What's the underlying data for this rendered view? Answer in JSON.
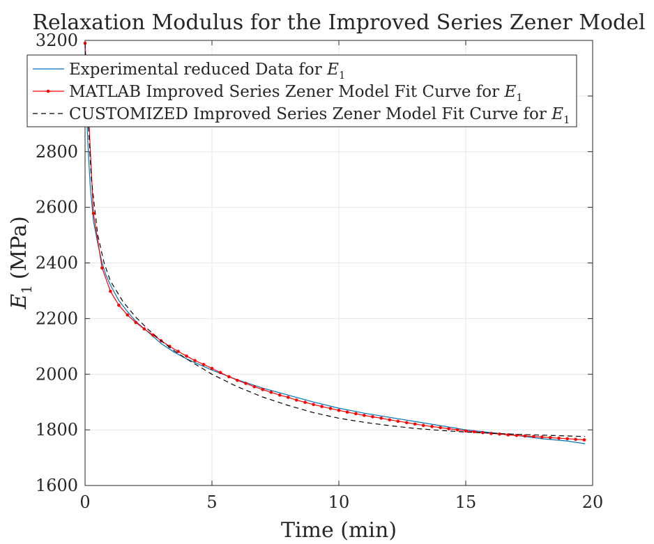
{
  "chart_data": {
    "type": "line",
    "title": "Relaxation Modulus for the Improved Series Zener Model",
    "xlabel": "Time (min)",
    "ylabel": "E1 (MPa)",
    "ylabel_main": "E",
    "ylabel_sub": "1",
    "ylabel_unit": "(MPa)",
    "xlim": [
      0,
      20
    ],
    "ylim": [
      1600,
      3200
    ],
    "xticks": [
      0,
      5,
      10,
      15,
      20
    ],
    "yticks": [
      1600,
      1800,
      2000,
      2200,
      2400,
      2600,
      2800,
      3200
    ],
    "grid": true,
    "legend_position": "top-left",
    "series": [
      {
        "name": "Experimental reduced Data for E1",
        "legend_prefix": "Experimental reduced Data for ",
        "color": "#0072BD",
        "style": "solid",
        "x": [
          0,
          0.05,
          0.1,
          0.2,
          0.33,
          0.5,
          0.67,
          0.83,
          1.0,
          1.33,
          1.67,
          2.0,
          2.5,
          3.0,
          3.5,
          4.0,
          5.0,
          6.0,
          7.0,
          8.0,
          9.0,
          10.0,
          11.0,
          12.0,
          13.0,
          14.0,
          15.0,
          16.0,
          17.0,
          18.0,
          19.0,
          19.7
        ],
        "y": [
          3190,
          3000,
          2850,
          2680,
          2550,
          2470,
          2400,
          2355,
          2320,
          2265,
          2225,
          2190,
          2150,
          2110,
          2080,
          2055,
          2015,
          1980,
          1950,
          1925,
          1900,
          1878,
          1860,
          1845,
          1830,
          1815,
          1800,
          1790,
          1780,
          1768,
          1760,
          1750
        ]
      },
      {
        "name": "MATLAB Improved Series Zener Model Fit Curve for E1",
        "legend_prefix": "MATLAB Improved Series Zener Model Fit Curve for ",
        "color": "#FF0000",
        "style": "solid-markers",
        "x": [
          0,
          0.33,
          0.67,
          1.0,
          1.33,
          1.67,
          2.0,
          2.33,
          2.67,
          3.0,
          3.33,
          3.67,
          4.0,
          4.33,
          4.67,
          5.0,
          5.33,
          5.67,
          6.0,
          6.33,
          6.67,
          7.0,
          7.33,
          7.67,
          8.0,
          8.33,
          8.67,
          9.0,
          9.33,
          9.67,
          10.0,
          10.33,
          10.67,
          11.0,
          11.33,
          11.67,
          12.0,
          12.33,
          12.67,
          13.0,
          13.33,
          13.67,
          14.0,
          14.33,
          14.67,
          15.0,
          15.33,
          15.67,
          16.0,
          16.33,
          16.67,
          17.0,
          17.33,
          17.67,
          18.0,
          18.33,
          18.67,
          19.0,
          19.33,
          19.67
        ],
        "y": [
          3190,
          2578,
          2382,
          2298,
          2248,
          2213,
          2186,
          2163,
          2141,
          2120,
          2100,
          2082,
          2065,
          2049,
          2035,
          2021,
          2006,
          1991,
          1978,
          1967,
          1955,
          1945,
          1935,
          1925,
          1917,
          1907,
          1899,
          1891,
          1884,
          1877,
          1870,
          1864,
          1858,
          1852,
          1847,
          1842,
          1836,
          1831,
          1826,
          1821,
          1816,
          1812,
          1808,
          1804,
          1800,
          1796,
          1793,
          1790,
          1787,
          1785,
          1782,
          1780,
          1778,
          1776,
          1774,
          1772,
          1770,
          1768,
          1766,
          1764
        ]
      },
      {
        "name": "CUSTOMIZED Improved Series Zener Model Fit Curve for E1",
        "legend_prefix": "CUSTOMIZED Improved Series Zener Model Fit Curve for ",
        "color": "#000000",
        "style": "dashed",
        "x": [
          0,
          0.1,
          0.25,
          0.5,
          0.75,
          1.0,
          1.5,
          2.0,
          2.5,
          3.0,
          3.5,
          4.0,
          5.0,
          6.0,
          7.0,
          8.0,
          9.0,
          10.0,
          11.0,
          12.0,
          13.0,
          14.0,
          15.0,
          16.0,
          17.0,
          18.0,
          19.0,
          19.7
        ],
        "y": [
          3190,
          2950,
          2700,
          2500,
          2400,
          2335,
          2260,
          2205,
          2160,
          2120,
          2085,
          2055,
          2000,
          1955,
          1918,
          1888,
          1862,
          1842,
          1827,
          1815,
          1805,
          1798,
          1792,
          1788,
          1784,
          1781,
          1778,
          1776
        ]
      }
    ]
  }
}
